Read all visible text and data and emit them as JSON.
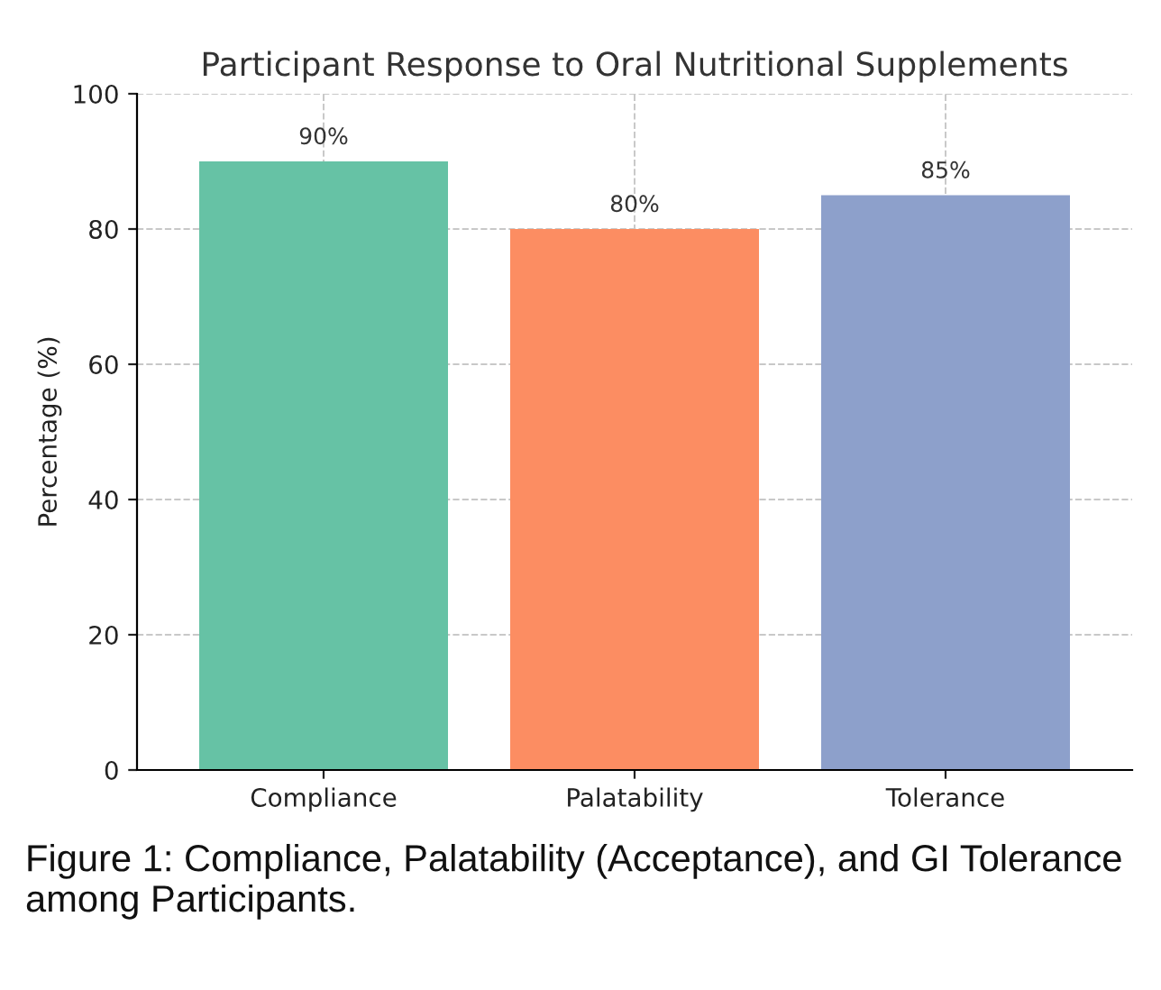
{
  "chart_data": {
    "type": "bar",
    "title": "Participant Response to Oral Nutritional Supplements",
    "ylabel": "Percentage (%)",
    "categories": [
      "Compliance",
      "Palatability",
      "Tolerance"
    ],
    "values": [
      90,
      80,
      85
    ],
    "colors": [
      "#66c2a5",
      "#fc8d62",
      "#8da0cb"
    ],
    "value_labels": [
      "90%",
      "80%",
      "85%"
    ],
    "ylim": [
      0,
      100
    ],
    "yticks": [
      0,
      20,
      40,
      60,
      80,
      100
    ],
    "grid": true,
    "annotations": [
      "Figure 1: Compliance, Palatability (Acceptance), and GI Tolerance among Participants."
    ]
  }
}
